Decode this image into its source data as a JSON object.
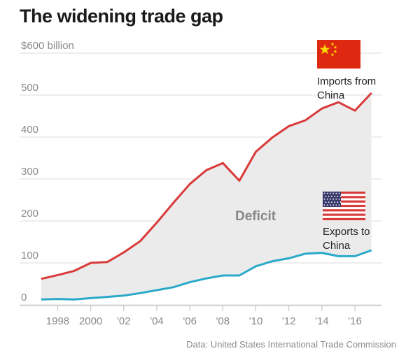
{
  "title": "The widening trade gap",
  "source": "Data: United States International Trade Commission",
  "colors": {
    "imports": "#d93a3a",
    "exports": "#2aa9c9",
    "deficit_fill": "#ebebeb",
    "grid": "#dddddd",
    "text_muted": "#8a8a8a"
  },
  "icons": {
    "china_flag": "china-flag-icon",
    "us_flag": "us-flag-icon"
  },
  "chart_data": {
    "type": "area",
    "x": [
      1997,
      1998,
      1999,
      2000,
      2001,
      2002,
      2003,
      2004,
      2005,
      2006,
      2007,
      2008,
      2009,
      2010,
      2011,
      2012,
      2013,
      2014,
      2015,
      2016,
      2017
    ],
    "series": [
      {
        "name": "Imports from China",
        "values": [
          62,
          71,
          81,
          100,
          102,
          125,
          152,
          196,
          243,
          288,
          321,
          338,
          296,
          365,
          399,
          426,
          440,
          468,
          483,
          463,
          505
        ]
      },
      {
        "name": "Exports to China",
        "values": [
          13,
          14,
          13,
          16,
          19,
          22,
          28,
          35,
          42,
          54,
          63,
          70,
          70,
          92,
          104,
          111,
          122,
          124,
          116,
          116,
          130
        ]
      }
    ],
    "series_label_lines": [
      [
        "Imports from",
        "China"
      ],
      [
        "Exports to",
        "China"
      ]
    ],
    "area_label": "Deficit",
    "y_ticks": [
      {
        "value": 0,
        "label": "0"
      },
      {
        "value": 100,
        "label": "100"
      },
      {
        "value": 200,
        "label": "200"
      },
      {
        "value": 300,
        "label": "300"
      },
      {
        "value": 400,
        "label": "400"
      },
      {
        "value": 500,
        "label": "500"
      },
      {
        "value": 600,
        "label": "$600 billion"
      }
    ],
    "x_ticks": [
      {
        "value": 1998,
        "label": "1998"
      },
      {
        "value": 2000,
        "label": "2000"
      },
      {
        "value": 2002,
        "label": "'02"
      },
      {
        "value": 2004,
        "label": "'04"
      },
      {
        "value": 2006,
        "label": "'06"
      },
      {
        "value": 2008,
        "label": "'08"
      },
      {
        "value": 2010,
        "label": "'10"
      },
      {
        "value": 2012,
        "label": "'12"
      },
      {
        "value": 2014,
        "label": "'14"
      },
      {
        "value": 2016,
        "label": "'16"
      }
    ],
    "ylim": [
      0,
      600
    ],
    "xlim": [
      1996.2,
      2017.1
    ],
    "grid": true
  }
}
